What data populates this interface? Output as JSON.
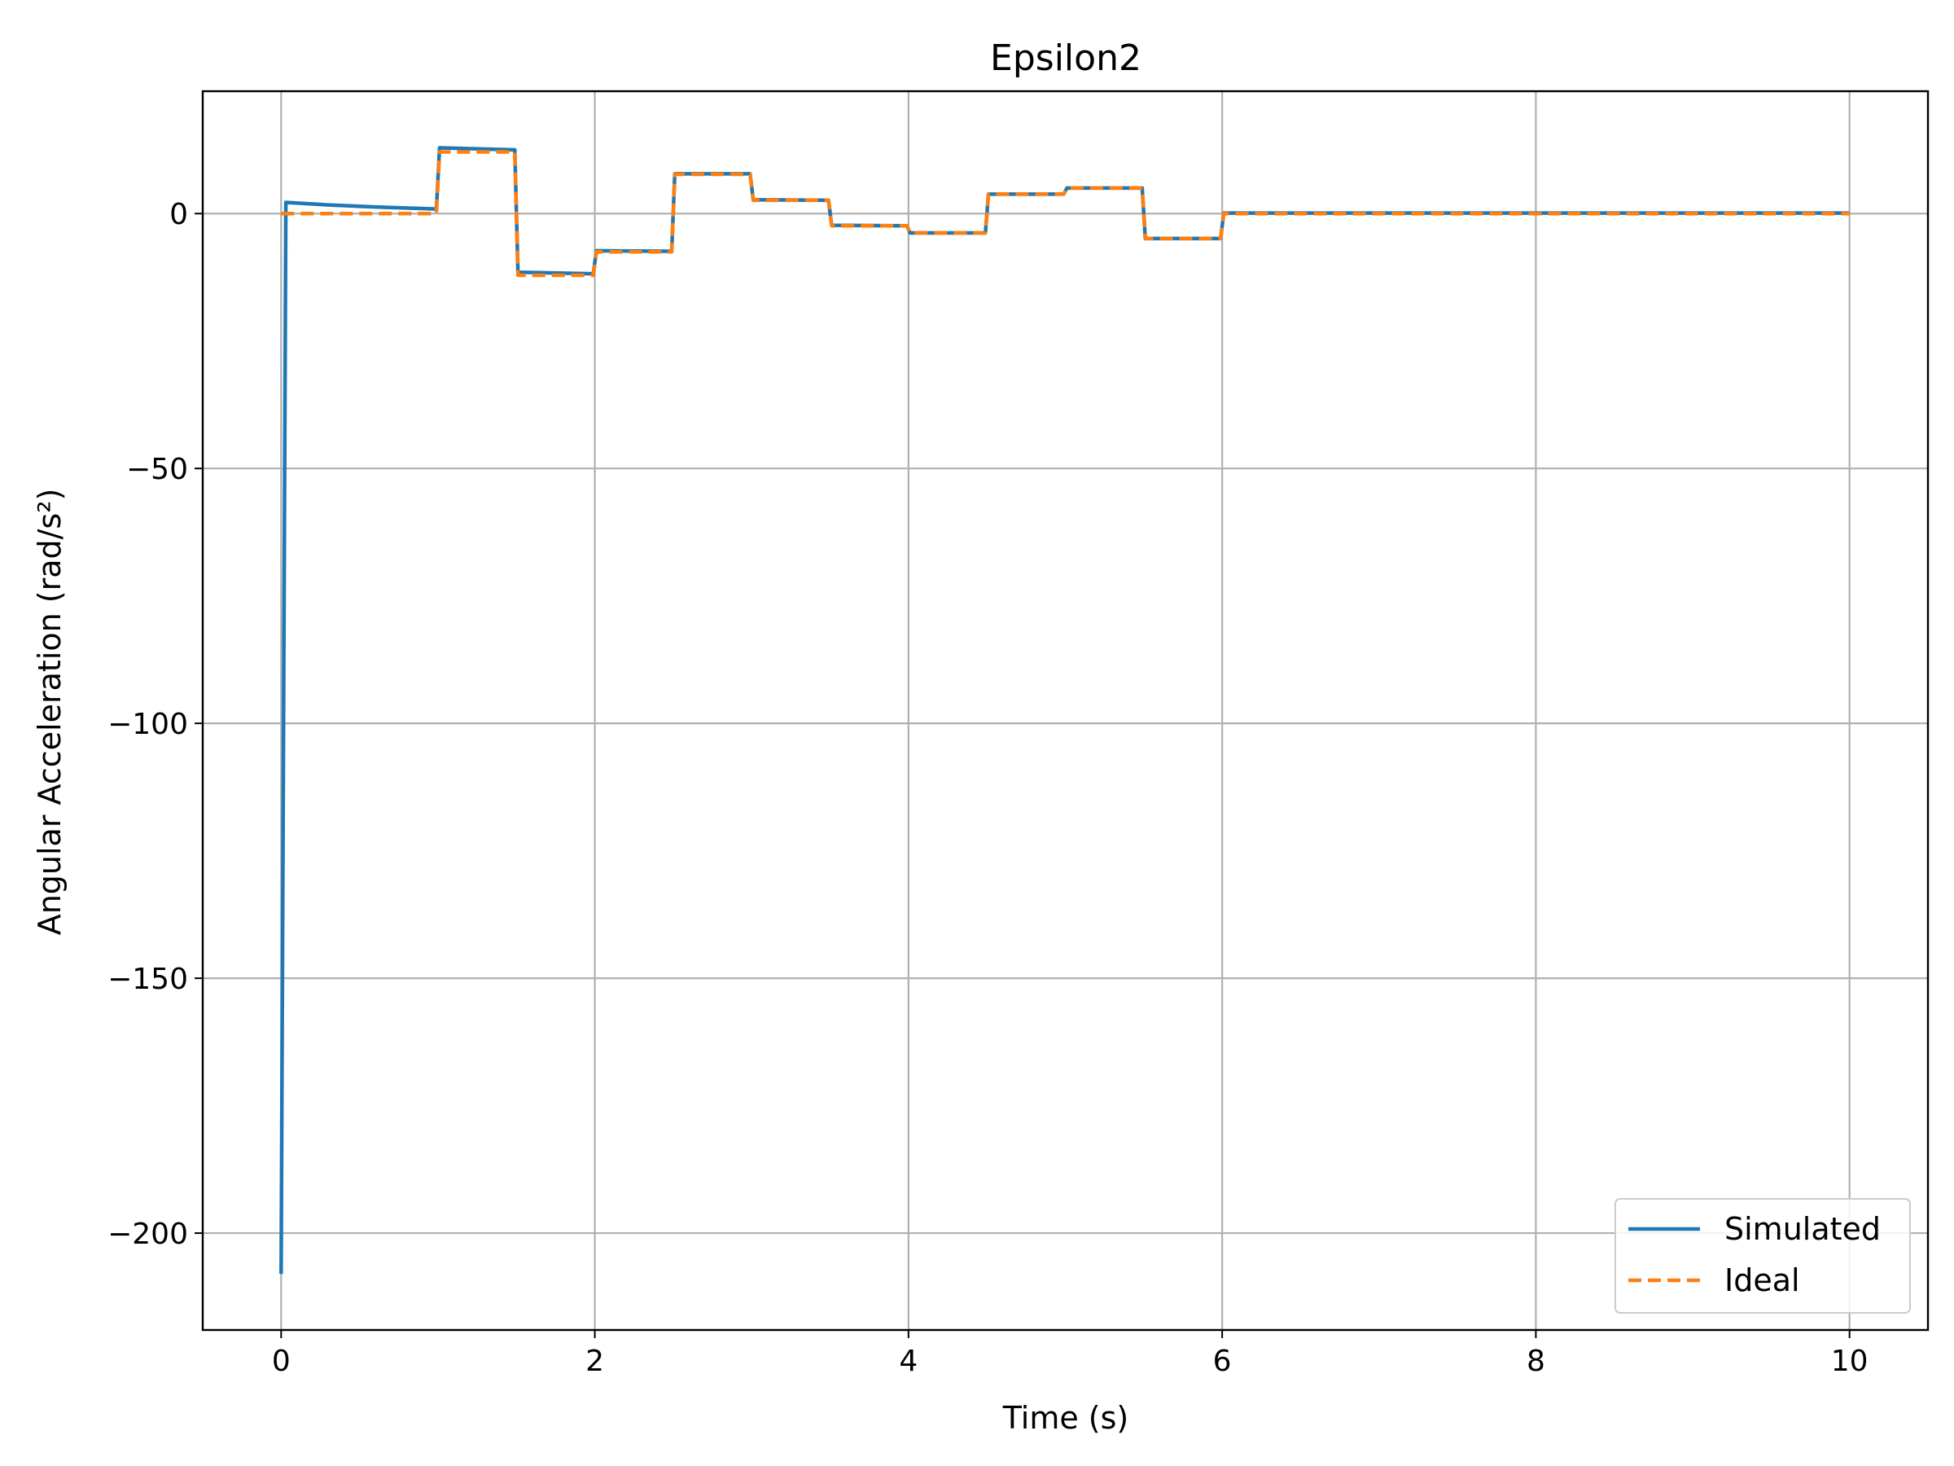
{
  "chart_data": {
    "type": "line",
    "title": "Epsilon2",
    "xlabel": "Time (s)",
    "ylabel": "Angular Acceleration (rad/s²)",
    "xlim": [
      -0.5,
      10.5
    ],
    "ylim": [
      -219,
      24
    ],
    "xticks": [
      0,
      2,
      4,
      6,
      8,
      10
    ],
    "xtick_labels": [
      "0",
      "2",
      "4",
      "6",
      "8",
      "10"
    ],
    "yticks": [
      0,
      -50,
      -100,
      -150,
      -200
    ],
    "ytick_labels": [
      "0",
      "−50",
      "−100",
      "−150",
      "−200"
    ],
    "grid": true,
    "legend_position": "lower-right",
    "series": [
      {
        "name": "Simulated",
        "color": "#1f77b4",
        "style": "solid",
        "x": [
          0,
          0.03,
          0.3,
          0.6,
          0.99,
          1.01,
          1.49,
          1.51,
          1.99,
          2.01,
          2.49,
          2.51,
          2.99,
          3.01,
          3.49,
          3.51,
          3.99,
          4.01,
          4.49,
          4.51,
          4.99,
          5.01,
          5.49,
          5.51,
          5.99,
          6.01,
          10
        ],
        "y": [
          -208,
          2.2,
          1.7,
          1.3,
          0.9,
          12.9,
          12.5,
          -11.5,
          -11.8,
          -7.3,
          -7.4,
          7.8,
          7.8,
          2.7,
          2.6,
          -2.3,
          -2.4,
          -3.8,
          -3.8,
          3.8,
          3.8,
          5.0,
          5.0,
          -4.9,
          -4.9,
          0.1,
          0.1
        ]
      },
      {
        "name": "Ideal",
        "color": "#ff7f0e",
        "style": "dashed",
        "x": [
          0,
          0.99,
          1.01,
          1.49,
          1.51,
          1.99,
          2.01,
          2.49,
          2.51,
          2.99,
          3.01,
          3.49,
          3.51,
          3.99,
          4.01,
          4.49,
          4.51,
          4.99,
          5.01,
          5.49,
          5.51,
          5.99,
          6.01,
          10
        ],
        "y": [
          0,
          0,
          12.1,
          12.1,
          -12.1,
          -12.1,
          -7.5,
          -7.5,
          7.7,
          7.7,
          2.6,
          2.6,
          -2.4,
          -2.4,
          -3.8,
          -3.8,
          3.8,
          3.8,
          5.0,
          5.0,
          -4.9,
          -4.9,
          0,
          0
        ]
      }
    ]
  }
}
